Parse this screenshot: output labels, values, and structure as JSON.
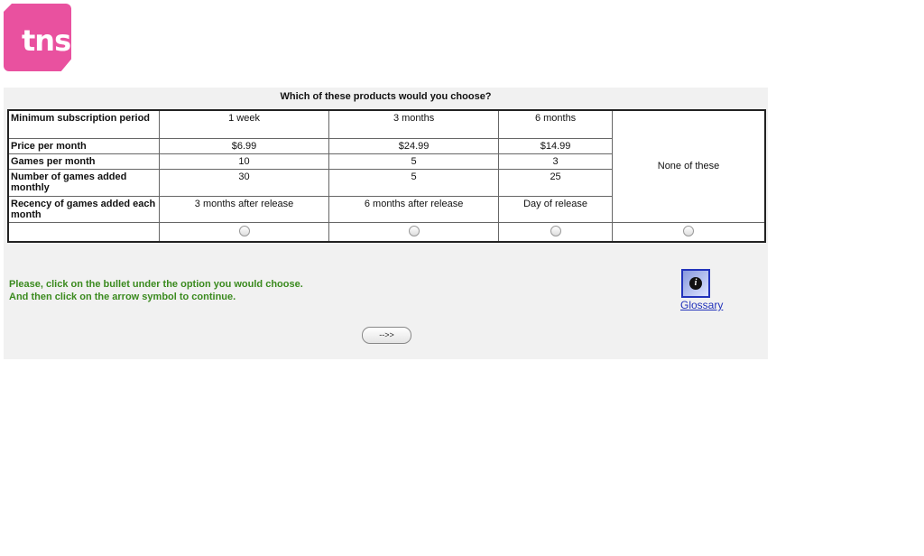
{
  "logo": {
    "text": "tns",
    "color": "#e9519f"
  },
  "question": "Which of these products would you choose?",
  "rows": [
    {
      "label": "Minimum subscription period",
      "values": [
        "1 week",
        "3 months",
        "6 months"
      ]
    },
    {
      "label": "Price per month",
      "values": [
        "$6.99",
        "$24.99",
        "$14.99"
      ]
    },
    {
      "label": "Games per month",
      "values": [
        "10",
        "5",
        "3"
      ]
    },
    {
      "label": "Number of games added monthly",
      "values": [
        "30",
        "5",
        "25"
      ]
    },
    {
      "label": "Recency of games added each month",
      "values": [
        "3 months after release",
        "6 months after release",
        "Day of release"
      ]
    }
  ],
  "none_option": "None of these",
  "instructions": [
    "Please, click on the bullet under the option you would choose.",
    "And then click on the arrow symbol to continue."
  ],
  "glossary": {
    "label": "Glossary",
    "icon": "info-icon"
  },
  "next_button": "-->>"
}
